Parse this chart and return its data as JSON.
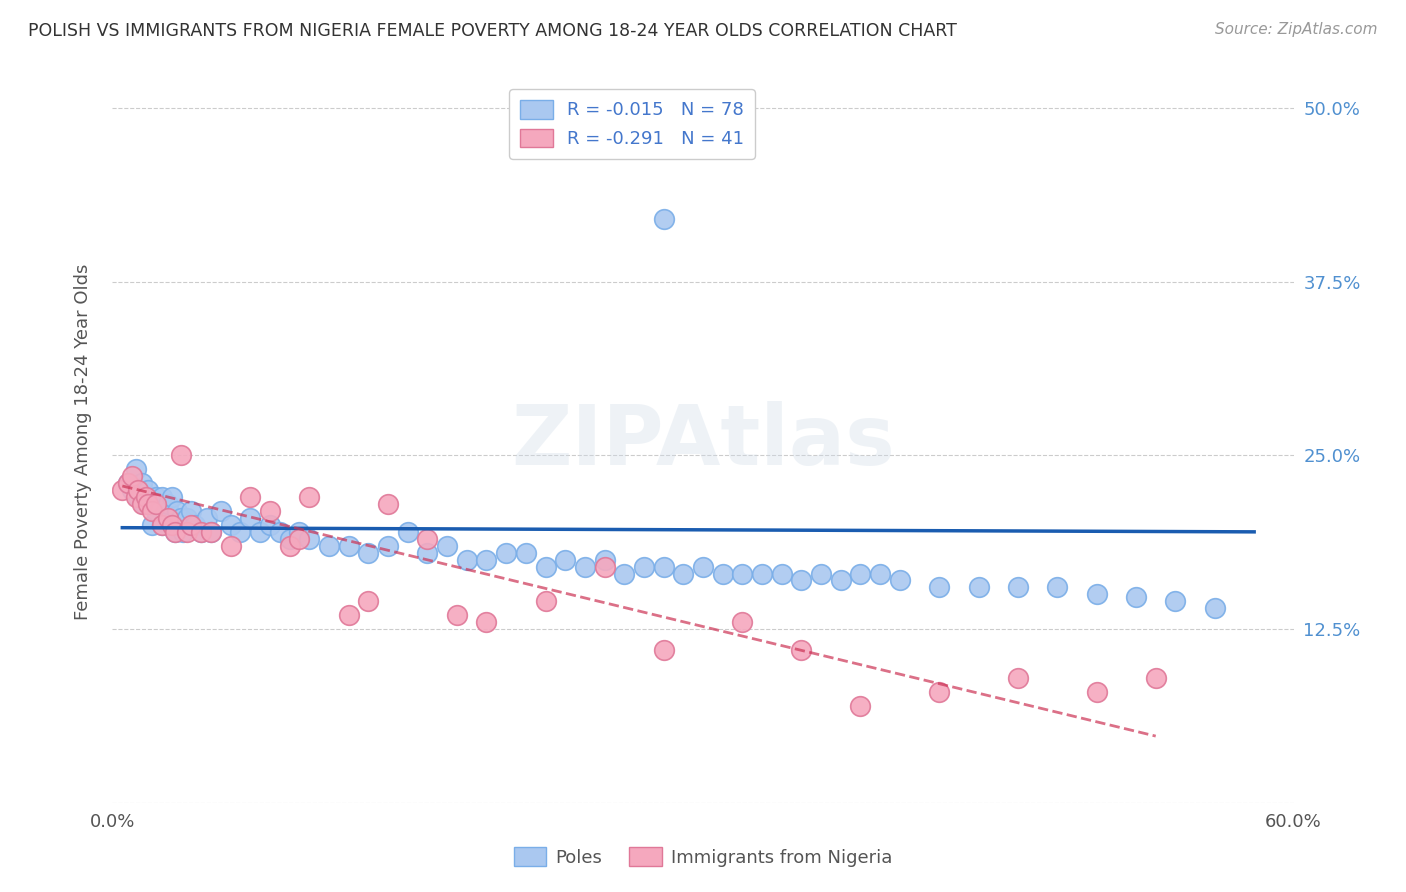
{
  "title": "POLISH VS IMMIGRANTS FROM NIGERIA FEMALE POVERTY AMONG 18-24 YEAR OLDS CORRELATION CHART",
  "source": "Source: ZipAtlas.com",
  "ylabel": "Female Poverty Among 18-24 Year Olds",
  "xmin": 0.0,
  "xmax": 0.6,
  "ymin": 0.0,
  "ymax": 0.52,
  "yticks": [
    0.0,
    0.125,
    0.25,
    0.375,
    0.5
  ],
  "ytick_labels": [
    "",
    "12.5%",
    "25.0%",
    "37.5%",
    "50.0%"
  ],
  "xticks": [
    0.0,
    0.1,
    0.2,
    0.3,
    0.4,
    0.5,
    0.6
  ],
  "xtick_labels": [
    "0.0%",
    "",
    "",
    "",
    "",
    "",
    "60.0%"
  ],
  "poles_R": "-0.015",
  "poles_N": "78",
  "nigeria_R": "-0.291",
  "nigeria_N": "41",
  "poles_color": "#aac8f0",
  "poles_edge_color": "#7aaee8",
  "nigeria_color": "#f5a8be",
  "nigeria_edge_color": "#e07898",
  "trend_poles_color": "#1a5cb0",
  "trend_nigeria_color": "#cc3355",
  "watermark": "ZIPAtlas",
  "background_color": "#ffffff",
  "grid_color": "#cccccc",
  "title_color": "#333333",
  "axis_label_color": "#555555",
  "right_tick_color": "#5090d0",
  "legend_text_color": "#4477cc",
  "legend_label_color": "#333333",
  "poles_x": [
    0.008,
    0.01,
    0.012,
    0.013,
    0.015,
    0.016,
    0.018,
    0.018,
    0.02,
    0.02,
    0.022,
    0.022,
    0.024,
    0.025,
    0.025,
    0.028,
    0.028,
    0.03,
    0.03,
    0.032,
    0.033,
    0.035,
    0.036,
    0.038,
    0.04,
    0.042,
    0.045,
    0.048,
    0.05,
    0.055,
    0.06,
    0.065,
    0.07,
    0.075,
    0.08,
    0.085,
    0.09,
    0.095,
    0.1,
    0.11,
    0.12,
    0.13,
    0.14,
    0.15,
    0.16,
    0.17,
    0.18,
    0.19,
    0.2,
    0.21,
    0.22,
    0.23,
    0.24,
    0.25,
    0.26,
    0.27,
    0.28,
    0.29,
    0.3,
    0.31,
    0.32,
    0.33,
    0.34,
    0.35,
    0.36,
    0.37,
    0.38,
    0.39,
    0.4,
    0.42,
    0.44,
    0.46,
    0.48,
    0.5,
    0.52,
    0.54,
    0.56,
    0.28
  ],
  "poles_y": [
    0.23,
    0.225,
    0.24,
    0.22,
    0.23,
    0.215,
    0.22,
    0.225,
    0.215,
    0.2,
    0.22,
    0.21,
    0.215,
    0.22,
    0.2,
    0.21,
    0.215,
    0.2,
    0.22,
    0.195,
    0.21,
    0.205,
    0.195,
    0.205,
    0.21,
    0.2,
    0.195,
    0.205,
    0.195,
    0.21,
    0.2,
    0.195,
    0.205,
    0.195,
    0.2,
    0.195,
    0.19,
    0.195,
    0.19,
    0.185,
    0.185,
    0.18,
    0.185,
    0.195,
    0.18,
    0.185,
    0.175,
    0.175,
    0.18,
    0.18,
    0.17,
    0.175,
    0.17,
    0.175,
    0.165,
    0.17,
    0.17,
    0.165,
    0.17,
    0.165,
    0.165,
    0.165,
    0.165,
    0.16,
    0.165,
    0.16,
    0.165,
    0.165,
    0.16,
    0.155,
    0.155,
    0.155,
    0.155,
    0.15,
    0.148,
    0.145,
    0.14,
    0.42
  ],
  "nigeria_x": [
    0.005,
    0.008,
    0.01,
    0.012,
    0.013,
    0.015,
    0.017,
    0.018,
    0.02,
    0.022,
    0.025,
    0.028,
    0.03,
    0.032,
    0.035,
    0.038,
    0.04,
    0.045,
    0.05,
    0.06,
    0.07,
    0.08,
    0.09,
    0.095,
    0.1,
    0.12,
    0.13,
    0.14,
    0.16,
    0.175,
    0.19,
    0.22,
    0.25,
    0.28,
    0.32,
    0.35,
    0.38,
    0.42,
    0.46,
    0.5,
    0.53
  ],
  "nigeria_y": [
    0.225,
    0.23,
    0.235,
    0.22,
    0.225,
    0.215,
    0.22,
    0.215,
    0.21,
    0.215,
    0.2,
    0.205,
    0.2,
    0.195,
    0.25,
    0.195,
    0.2,
    0.195,
    0.195,
    0.185,
    0.22,
    0.21,
    0.185,
    0.19,
    0.22,
    0.135,
    0.145,
    0.215,
    0.19,
    0.135,
    0.13,
    0.145,
    0.17,
    0.11,
    0.13,
    0.11,
    0.07,
    0.08,
    0.09,
    0.08,
    0.09
  ],
  "poles_trend_x": [
    0.005,
    0.58
  ],
  "poles_trend_y": [
    0.198,
    0.195
  ],
  "nigeria_trend_x": [
    0.005,
    0.53
  ],
  "nigeria_trend_y": [
    0.228,
    0.048
  ]
}
